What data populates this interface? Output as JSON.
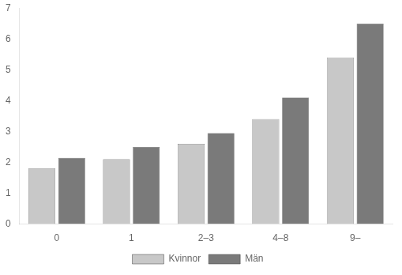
{
  "chart_data": {
    "type": "bar",
    "categories": [
      "0",
      "1",
      "2–3",
      "4–8",
      "9–"
    ],
    "series": [
      {
        "name": "Kvinnor",
        "color": "#c8c8c8",
        "values": [
          1.8,
          2.1,
          2.6,
          3.4,
          5.4
        ]
      },
      {
        "name": "Män",
        "color": "#7a7a7a",
        "values": [
          2.15,
          2.5,
          2.95,
          4.1,
          6.5
        ]
      }
    ],
    "ylim": [
      0,
      7
    ],
    "yticks": [
      0,
      1,
      2,
      3,
      4,
      5,
      6,
      7
    ],
    "grid": false,
    "legend": "bottom"
  }
}
